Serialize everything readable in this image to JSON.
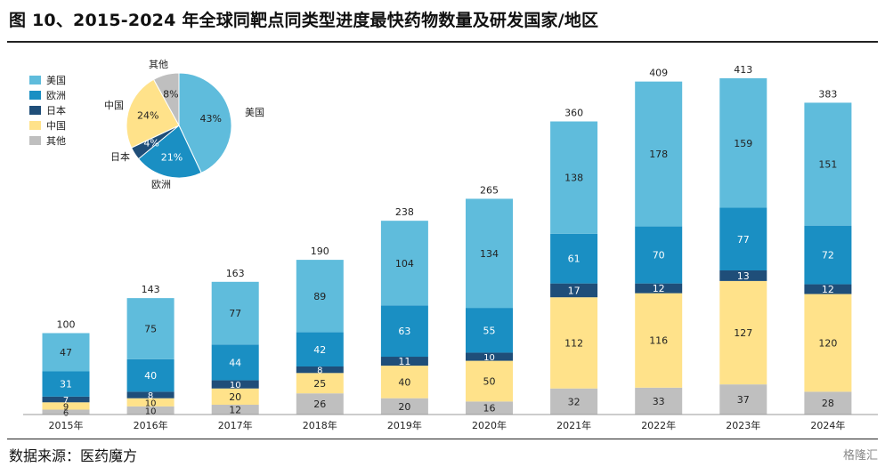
{
  "header": {
    "title": "图 10、2015-2024 年全球同靶点同类型进度最快药物数量及研发国家/地区"
  },
  "footer": {
    "source": "数据来源：医药魔方",
    "watermark": "格隆汇"
  },
  "chart_data": [
    {
      "type": "bar",
      "stacked": true,
      "categories": [
        "2015年",
        "2016年",
        "2017年",
        "2018年",
        "2019年",
        "2020年",
        "2021年",
        "2022年",
        "2023年",
        "2024年"
      ],
      "series": [
        {
          "name": "其他",
          "color": "#bfbfbf",
          "values": [
            6,
            10,
            12,
            26,
            20,
            16,
            32,
            33,
            37,
            28
          ]
        },
        {
          "name": "中国",
          "color": "#ffe28a",
          "values": [
            9,
            10,
            20,
            25,
            40,
            50,
            112,
            116,
            127,
            120
          ]
        },
        {
          "name": "日本",
          "color": "#1f4e79",
          "values": [
            7,
            8,
            10,
            8,
            11,
            10,
            17,
            12,
            13,
            12
          ]
        },
        {
          "name": "欧洲",
          "color": "#1a8fc3",
          "values": [
            31,
            40,
            44,
            42,
            63,
            55,
            61,
            70,
            77,
            72
          ]
        },
        {
          "name": "美国",
          "color": "#5fbcdc",
          "values": [
            47,
            75,
            77,
            89,
            104,
            134,
            138,
            178,
            159,
            151
          ]
        }
      ],
      "totals": [
        100,
        143,
        163,
        190,
        238,
        265,
        360,
        409,
        413,
        383
      ],
      "legend": {
        "placement": "top-left",
        "order": [
          "美国",
          "欧洲",
          "日本",
          "中国",
          "其他"
        ]
      },
      "ylim": [
        0,
        420
      ],
      "grid": false
    },
    {
      "type": "pie",
      "slices": [
        {
          "name": "美国",
          "label": "43%",
          "value": 43,
          "color": "#5fbcdc"
        },
        {
          "name": "欧洲",
          "label": "21%",
          "value": 21,
          "color": "#1a8fc3"
        },
        {
          "name": "日本",
          "label": "4%",
          "value": 4,
          "color": "#1f4e79"
        },
        {
          "name": "中国",
          "label": "24%",
          "value": 24,
          "color": "#ffe28a"
        },
        {
          "name": "其他",
          "label": "8%",
          "value": 8,
          "color": "#bfbfbf"
        }
      ]
    }
  ]
}
